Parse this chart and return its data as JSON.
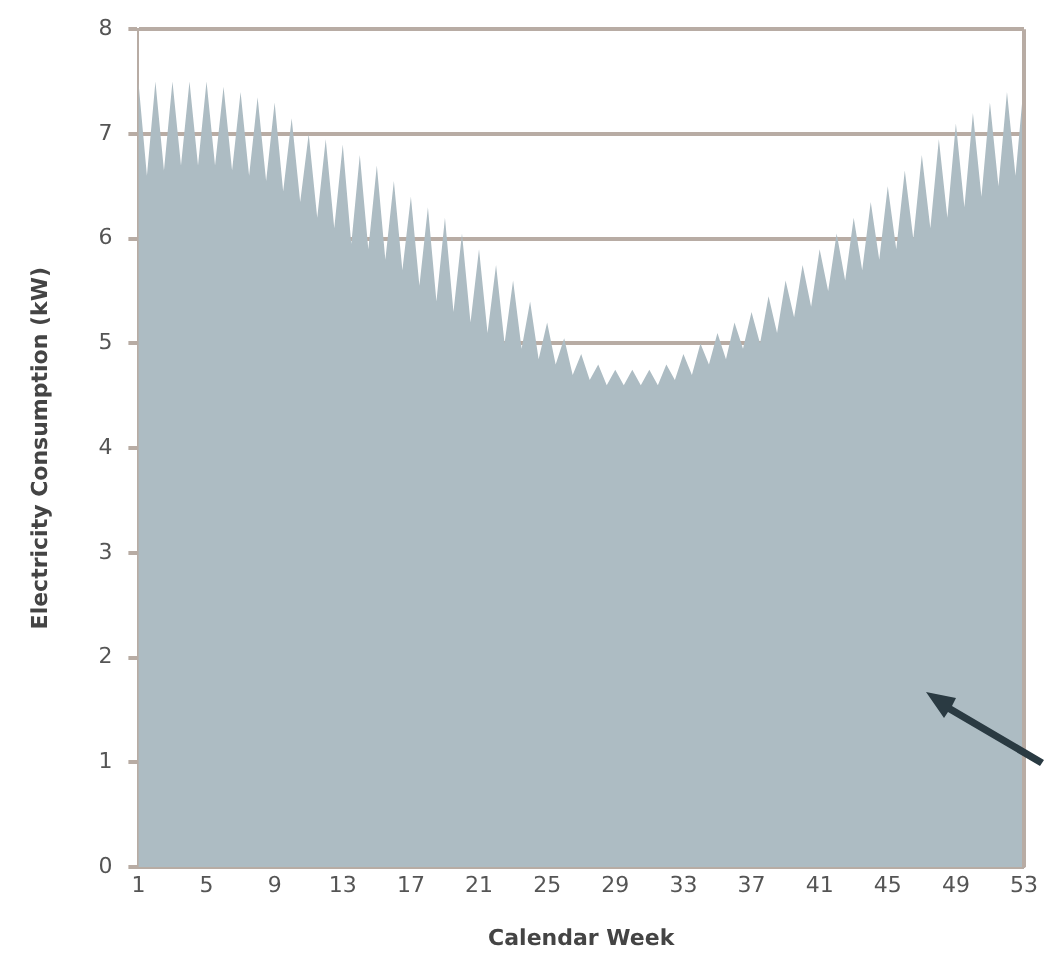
{
  "chart_data": {
    "type": "area",
    "xlabel": "Calendar Week",
    "ylabel": "Electricity Consumption (kW)",
    "x": [
      1,
      1.5,
      2,
      2.5,
      3,
      3.5,
      4,
      4.5,
      5,
      5.5,
      6,
      6.5,
      7,
      7.5,
      8,
      8.5,
      9,
      9.5,
      10,
      10.5,
      11,
      11.5,
      12,
      12.5,
      13,
      13.5,
      14,
      14.5,
      15,
      15.5,
      16,
      16.5,
      17,
      17.5,
      18,
      18.5,
      19,
      19.5,
      20,
      20.5,
      21,
      21.5,
      22,
      22.5,
      23,
      23.5,
      24,
      24.5,
      25,
      25.5,
      26,
      26.5,
      27,
      27.5,
      28,
      28.5,
      29,
      29.5,
      30,
      30.5,
      31,
      31.5,
      32,
      32.5,
      33,
      33.5,
      34,
      34.5,
      35,
      35.5,
      36,
      36.5,
      37,
      37.5,
      38,
      38.5,
      39,
      39.5,
      40,
      40.5,
      41,
      41.5,
      42,
      42.5,
      43,
      43.5,
      44,
      44.5,
      45,
      45.5,
      46,
      46.5,
      47,
      47.5,
      48,
      48.5,
      49,
      49.5,
      50,
      50.5,
      51,
      51.5,
      52,
      52.5,
      53
    ],
    "values": [
      7.5,
      6.6,
      7.5,
      6.65,
      7.5,
      6.7,
      7.5,
      6.7,
      7.5,
      6.7,
      7.45,
      6.65,
      7.4,
      6.6,
      7.35,
      6.55,
      7.3,
      6.45,
      7.15,
      6.35,
      7.0,
      6.2,
      6.95,
      6.1,
      6.9,
      5.95,
      6.8,
      5.9,
      6.7,
      5.8,
      6.55,
      5.7,
      6.4,
      5.55,
      6.3,
      5.4,
      6.2,
      5.3,
      6.05,
      5.2,
      5.9,
      5.1,
      5.75,
      5.0,
      5.6,
      4.95,
      5.4,
      4.85,
      5.2,
      4.8,
      5.05,
      4.7,
      4.9,
      4.65,
      4.8,
      4.6,
      4.75,
      4.6,
      4.75,
      4.6,
      4.75,
      4.6,
      4.8,
      4.65,
      4.9,
      4.7,
      5.0,
      4.8,
      5.1,
      4.85,
      5.2,
      4.95,
      5.3,
      5.0,
      5.45,
      5.1,
      5.6,
      5.25,
      5.75,
      5.35,
      5.9,
      5.5,
      6.05,
      5.6,
      6.2,
      5.7,
      6.35,
      5.8,
      6.5,
      5.9,
      6.65,
      6.0,
      6.8,
      6.1,
      6.95,
      6.2,
      7.1,
      6.3,
      7.2,
      6.4,
      7.3,
      6.5,
      7.4,
      6.6,
      7.5
    ],
    "color": "#adbcc3",
    "xlim": [
      1,
      53
    ],
    "xticks": [
      1,
      5,
      9,
      13,
      17,
      21,
      25,
      29,
      33,
      37,
      41,
      45,
      49,
      53
    ],
    "ylim": [
      0,
      8
    ],
    "yticks": [
      0,
      1,
      2,
      3,
      4,
      5,
      6,
      7,
      8
    ],
    "grid": "y",
    "legend": false,
    "marker": "none"
  }
}
